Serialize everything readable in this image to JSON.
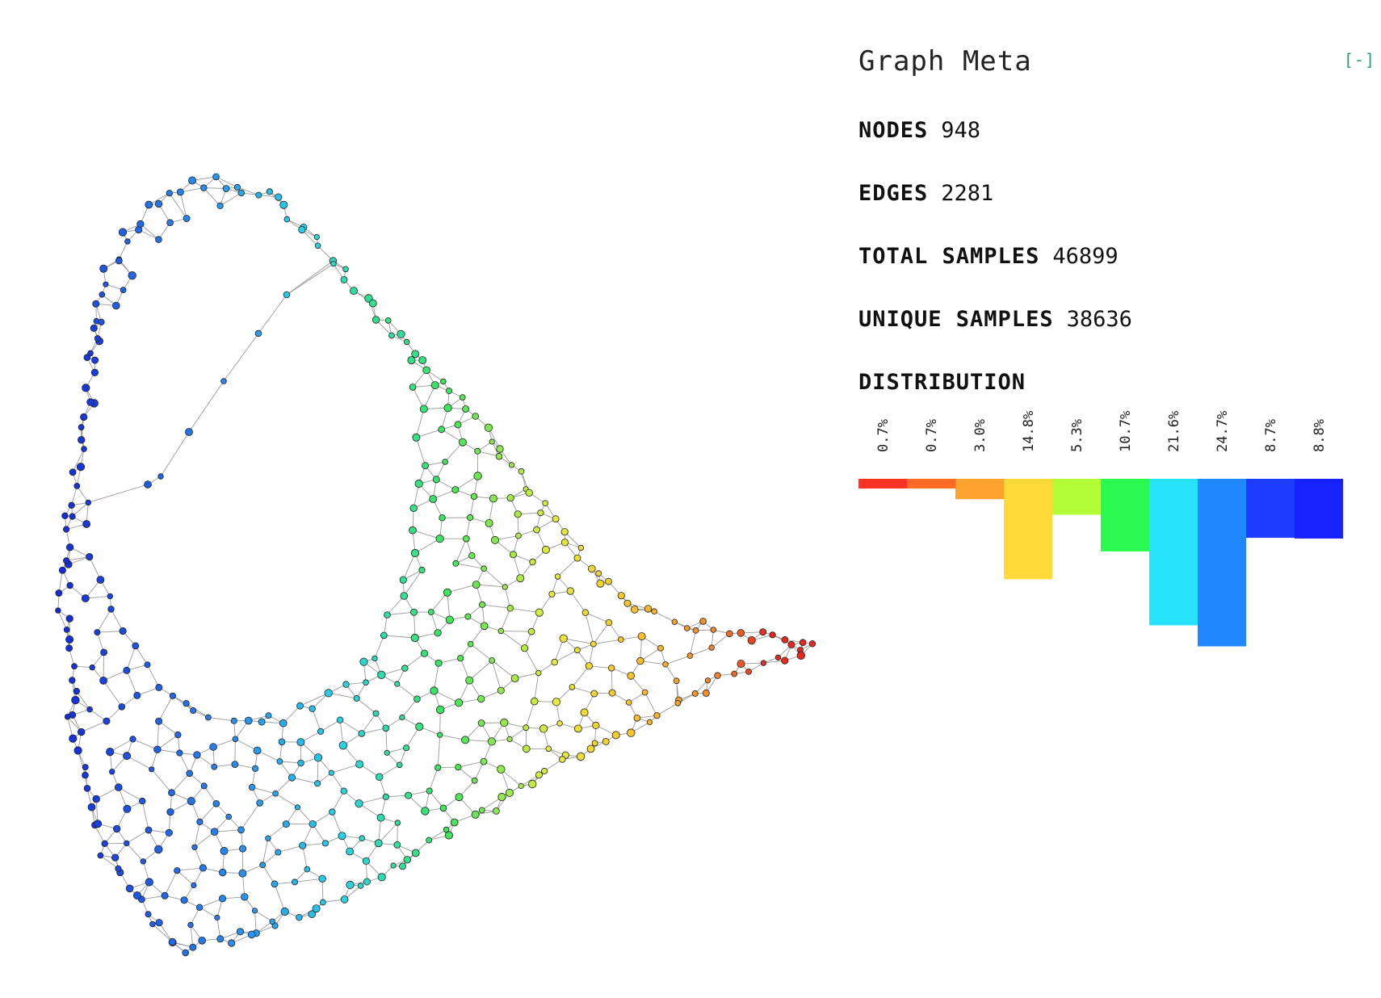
{
  "meta": {
    "title": "Graph Meta",
    "collapse_label": "[-]",
    "stats": [
      {
        "key": "NODES",
        "value": "948"
      },
      {
        "key": "EDGES",
        "value": "2281"
      },
      {
        "key": "TOTAL SAMPLES",
        "value": "46899"
      },
      {
        "key": "UNIQUE SAMPLES",
        "value": "38636"
      }
    ],
    "distribution_label": "DISTRIBUTION",
    "distribution": [
      {
        "label": "0.7%",
        "value": 0.7,
        "color": "#ff3324"
      },
      {
        "label": "0.7%",
        "value": 0.7,
        "color": "#ff6a26"
      },
      {
        "label": "3.0%",
        "value": 3.0,
        "color": "#ffa22e"
      },
      {
        "label": "14.8%",
        "value": 14.8,
        "color": "#ffd937"
      },
      {
        "label": "5.3%",
        "value": 5.3,
        "color": "#b2fb36"
      },
      {
        "label": "10.7%",
        "value": 10.7,
        "color": "#2afa50"
      },
      {
        "label": "21.6%",
        "value": 21.6,
        "color": "#26e2fb"
      },
      {
        "label": "24.7%",
        "value": 24.7,
        "color": "#2088ff"
      },
      {
        "label": "8.7%",
        "value": 8.7,
        "color": "#1e3cff"
      },
      {
        "label": "8.8%",
        "value": 8.8,
        "color": "#1622ff"
      }
    ]
  }
}
